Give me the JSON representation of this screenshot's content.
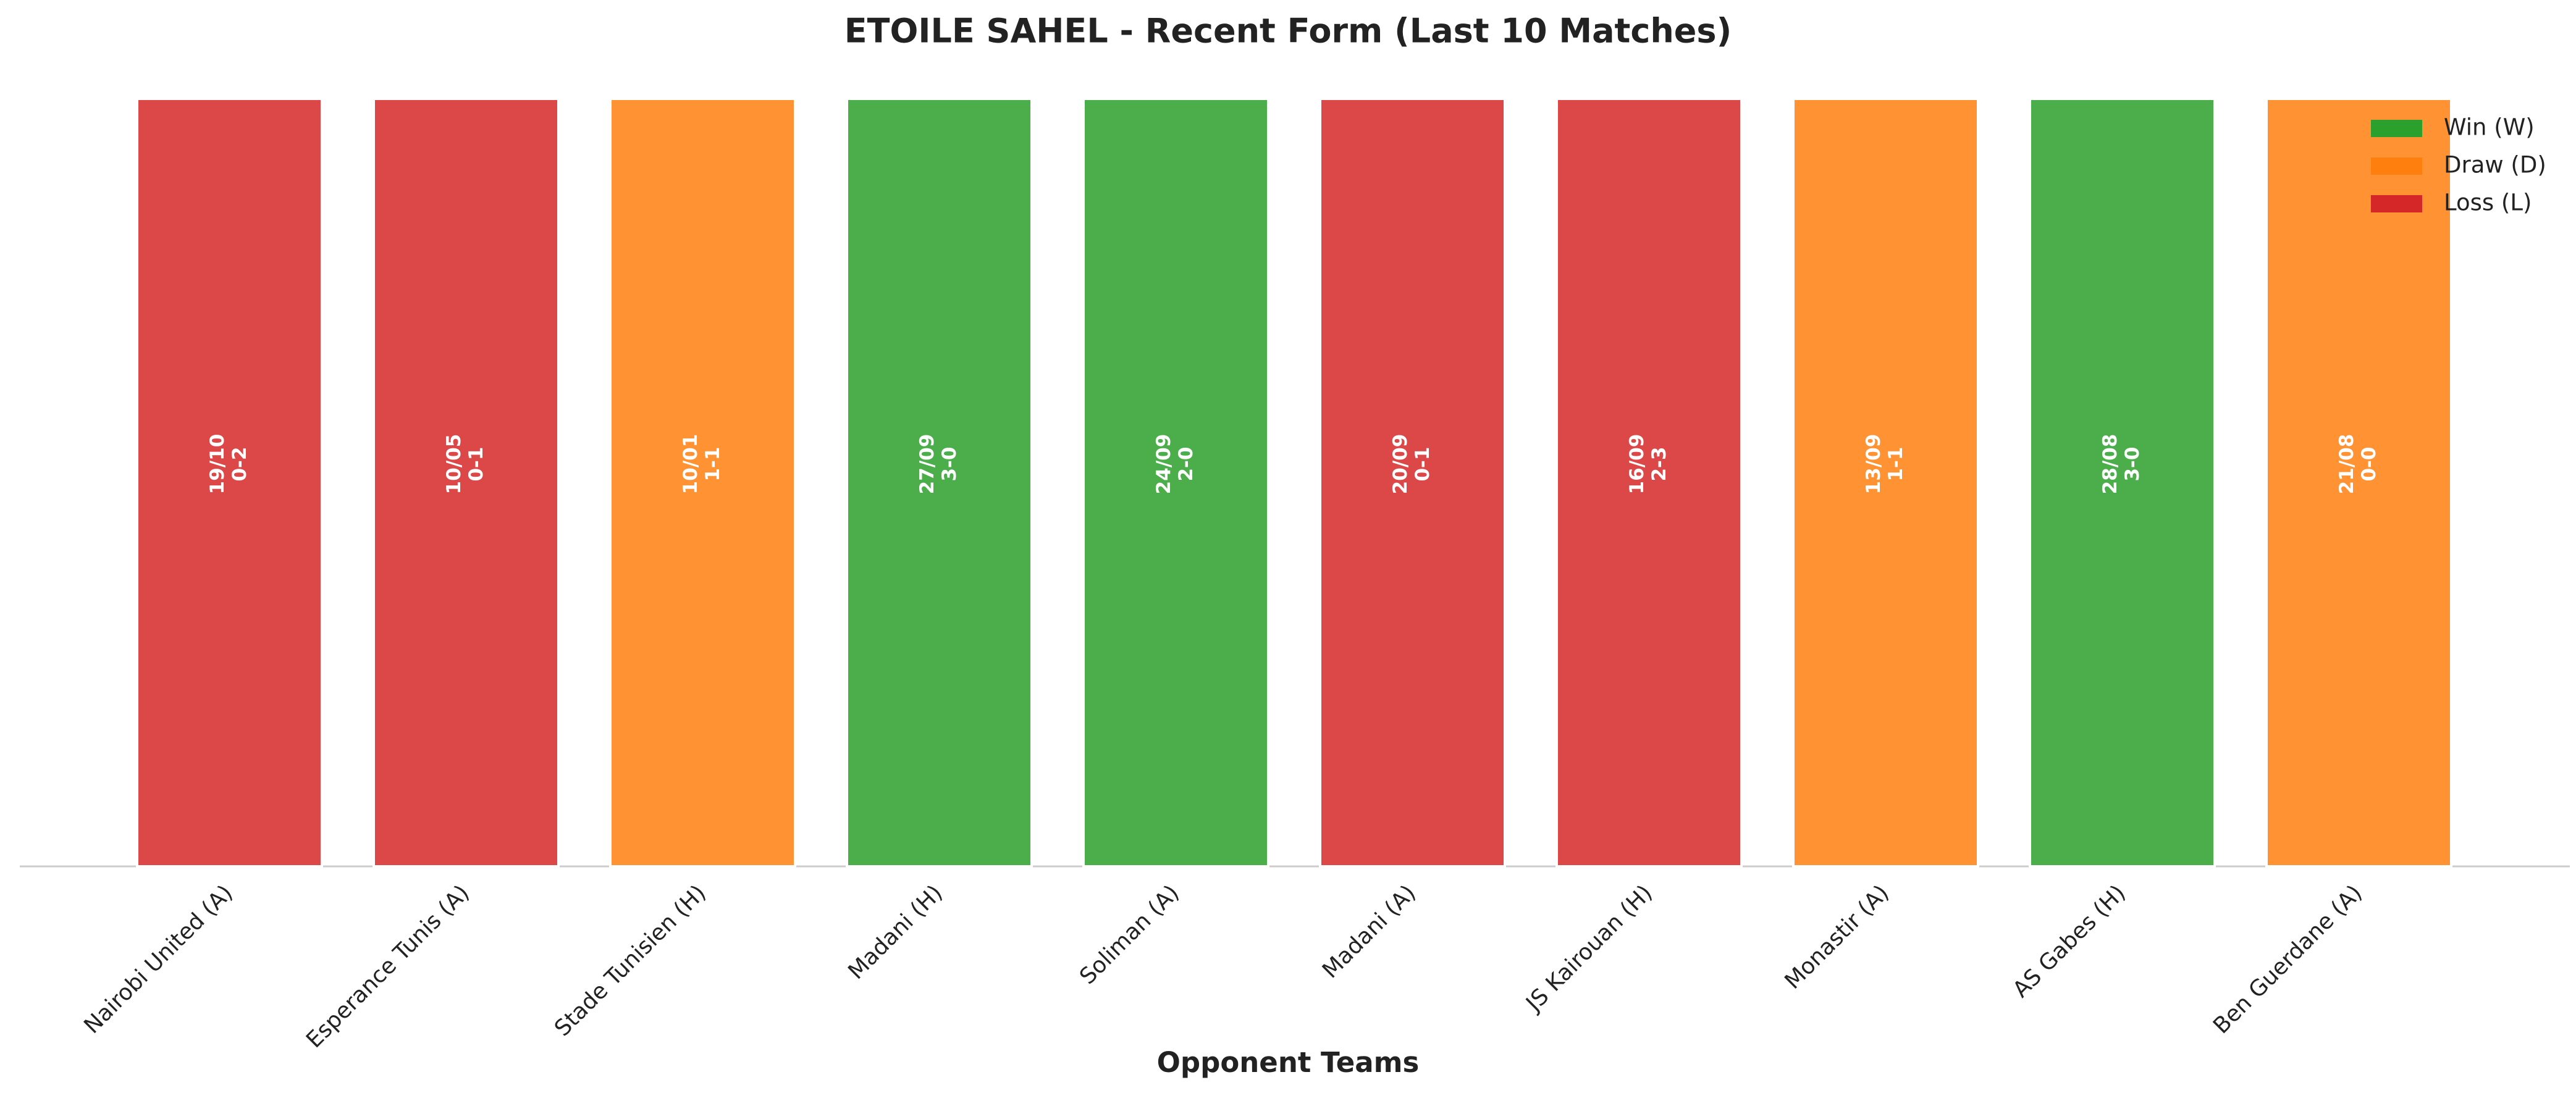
{
  "chart_data": {
    "type": "bar",
    "title": "ETOILE SAHEL - Recent Form (Last 10 Matches)",
    "x_label": "Opponent Teams",
    "categories": [
      "Nairobi United (A)",
      "Esperance Tunis (A)",
      "Stade Tunisien (H)",
      "Madani (H)",
      "Soliman (A)",
      "Madani (A)",
      "JS Kairouan (H)",
      "Monastir (A)",
      "AS Gabes (H)",
      "Ben Guerdane (A)"
    ],
    "values": [
      1,
      1,
      1,
      1,
      1,
      1,
      1,
      1,
      1,
      1
    ],
    "dates": [
      "19/10",
      "10/05",
      "10/01",
      "27/09",
      "24/09",
      "20/09",
      "16/09",
      "13/09",
      "28/08",
      "21/08"
    ],
    "scores": [
      "0-2",
      "0-1",
      "1-1",
      "3-0",
      "2-0",
      "0-1",
      "2-3",
      "1-1",
      "3-0",
      "0-0"
    ],
    "colors": [
      "#d62728",
      "#d62728",
      "#ff7f0e",
      "#2ca02c",
      "#2ca02c",
      "#d62728",
      "#d62728",
      "#ff7f0e",
      "#2ca02c",
      "#ff7f0e"
    ],
    "ylim": [
      0,
      1
    ],
    "legend": [
      {
        "name": "Win (W)",
        "color": "#2ca02c"
      },
      {
        "name": "Draw (D)",
        "color": "#ff7f0e"
      },
      {
        "name": "Loss (L)",
        "color": "#d62728"
      }
    ],
    "legend_position": "upper right"
  }
}
